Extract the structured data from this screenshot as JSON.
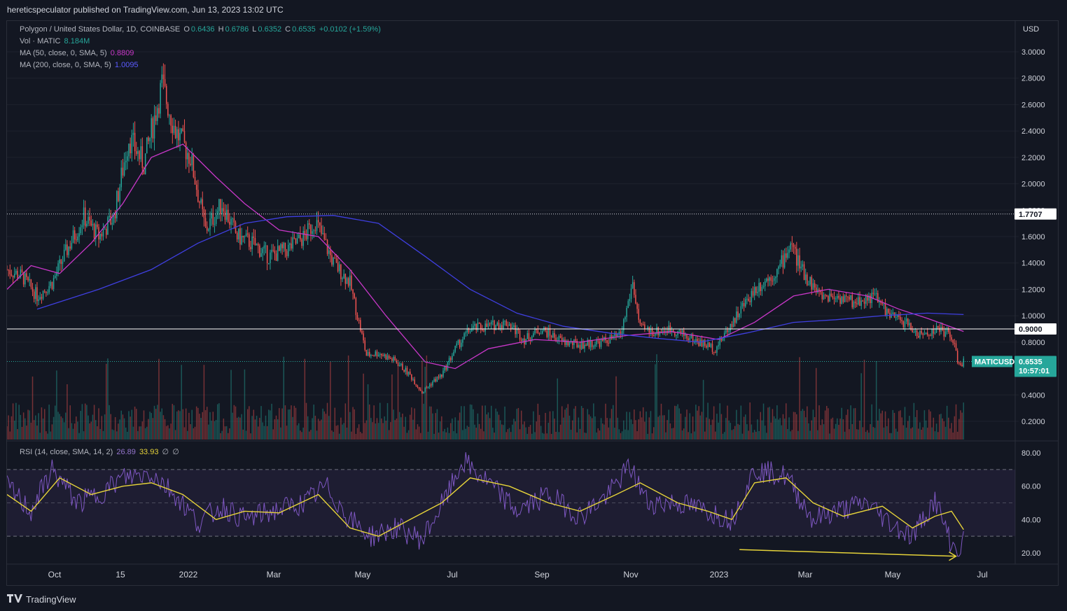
{
  "publisher_line": "hereticspeculator published on TradingView.com, Jun 13, 2023 13:02 UTC",
  "footer_brand": "TradingView",
  "legend": {
    "symbol": "Polygon / United States Dollar, 1D, COINBASE",
    "o_label": "O",
    "o": "0.6436",
    "h_label": "H",
    "h": "0.6786",
    "l_label": "L",
    "l": "0.6352",
    "c_label": "C",
    "c": "0.6535",
    "change": "+0.0102 (+1.59%)",
    "vol_label": "Vol · MATIC",
    "vol": "8.184M",
    "ma50_label": "MA (50, close, 0, SMA, 5)",
    "ma50": "0.8809",
    "ma200_label": "MA (200, close, 0, SMA, 5)",
    "ma200": "1.0095",
    "rsi_label": "RSI (14, close, SMA, 14, 2)",
    "rsi": "26.89",
    "rsi_ma": "33.93",
    "rsi_extra1": "∅",
    "rsi_extra2": "∅"
  },
  "price_axis": {
    "currency": "USD",
    "ticks": [
      "3.0000",
      "2.8000",
      "2.6000",
      "2.4000",
      "2.2000",
      "2.0000",
      "1.8000",
      "1.6000",
      "1.4000",
      "1.2000",
      "1.0000",
      "0.8000",
      "0.4000",
      "0.2000"
    ]
  },
  "rsi_axis": {
    "ticks": [
      "80.00",
      "60.00",
      "40.00",
      "20.00"
    ]
  },
  "time_axis": [
    "Oct",
    "15",
    "2022",
    "Mar",
    "May",
    "Jul",
    "Sep",
    "Nov",
    "2023",
    "Mar",
    "May",
    "Jul"
  ],
  "price_labels": {
    "resistance": "1.7707",
    "support": "0.9000",
    "ticker": "MATICUSD",
    "last": "0.6535",
    "countdown": "10:57:01"
  },
  "colors": {
    "up": "#26a69a",
    "down": "#ef5350",
    "ma50": "#c837c8",
    "ma200": "#3f3fe0",
    "rsi": "#7e57c2",
    "rsi_ma": "#e6d33a",
    "bg": "#131722"
  },
  "chart_data": {
    "type": "candlestick",
    "title": "Polygon / United States Dollar, 1D, COINBASE",
    "y_unit": "USD",
    "x_range": [
      "2021-09-15",
      "2023-07-15"
    ],
    "ylim": [
      0.0,
      3.0
    ],
    "horizontal_lines": [
      {
        "value": 1.7707,
        "style": "dotted"
      },
      {
        "value": 0.9,
        "style": "solid"
      },
      {
        "value": 0.6535,
        "style": "dotted"
      }
    ],
    "close_series": {
      "dates": [
        "2021-09-15",
        "2021-09-25",
        "2021-10-05",
        "2021-10-15",
        "2021-10-25",
        "2021-11-05",
        "2021-11-15",
        "2021-11-25",
        "2021-12-05",
        "2021-12-15",
        "2021-12-27",
        "2022-01-05",
        "2022-01-15",
        "2022-01-25",
        "2022-02-05",
        "2022-02-15",
        "2022-02-25",
        "2022-03-08",
        "2022-03-20",
        "2022-04-01",
        "2022-04-08",
        "2022-04-20",
        "2022-05-01",
        "2022-05-07",
        "2022-05-12",
        "2022-05-20",
        "2022-06-01",
        "2022-06-10",
        "2022-06-18",
        "2022-06-25",
        "2022-07-01",
        "2022-07-10",
        "2022-07-20",
        "2022-08-01",
        "2022-08-14",
        "2022-08-25",
        "2022-09-05",
        "2022-09-20",
        "2022-10-01",
        "2022-10-15",
        "2022-10-28",
        "2022-11-05",
        "2022-11-10",
        "2022-11-20",
        "2022-12-01",
        "2022-12-15",
        "2022-12-30",
        "2023-01-10",
        "2023-01-25",
        "2023-02-10",
        "2023-02-18",
        "2023-02-25",
        "2023-03-10",
        "2023-03-20",
        "2023-04-01",
        "2023-04-15",
        "2023-04-25",
        "2023-05-05",
        "2023-05-15",
        "2023-05-28",
        "2023-06-05",
        "2023-06-10",
        "2023-06-13"
      ],
      "values": [
        1.35,
        1.3,
        1.15,
        1.25,
        1.5,
        1.75,
        1.6,
        1.75,
        2.35,
        2.15,
        2.75,
        2.4,
        2.2,
        1.65,
        1.85,
        1.6,
        1.55,
        1.45,
        1.5,
        1.6,
        1.72,
        1.4,
        1.25,
        0.95,
        0.7,
        0.72,
        0.65,
        0.55,
        0.42,
        0.5,
        0.55,
        0.75,
        0.9,
        0.92,
        0.95,
        0.82,
        0.9,
        0.8,
        0.78,
        0.8,
        0.85,
        1.25,
        0.9,
        0.88,
        0.9,
        0.82,
        0.75,
        0.95,
        1.2,
        1.35,
        1.55,
        1.35,
        1.15,
        1.15,
        1.1,
        1.15,
        1.0,
        0.95,
        0.85,
        0.9,
        0.85,
        0.62,
        0.6535
      ]
    },
    "ma50": {
      "dates": [
        "2021-09-15",
        "2021-10-01",
        "2021-10-20",
        "2021-11-10",
        "2021-12-01",
        "2021-12-20",
        "2022-01-10",
        "2022-02-01",
        "2022-02-20",
        "2022-03-15",
        "2022-04-10",
        "2022-05-01",
        "2022-05-25",
        "2022-06-20",
        "2022-07-10",
        "2022-08-01",
        "2022-09-01",
        "2022-10-01",
        "2022-11-01",
        "2022-12-01",
        "2023-01-01",
        "2023-01-25",
        "2023-02-20",
        "2023-03-15",
        "2023-04-10",
        "2023-05-01",
        "2023-05-20",
        "2023-06-13"
      ],
      "values": [
        1.2,
        1.38,
        1.32,
        1.55,
        1.85,
        2.2,
        2.3,
        2.05,
        1.85,
        1.65,
        1.6,
        1.35,
        1.0,
        0.65,
        0.6,
        0.75,
        0.82,
        0.8,
        0.85,
        0.88,
        0.82,
        0.95,
        1.15,
        1.2,
        1.15,
        1.05,
        0.98,
        0.8809
      ]
    },
    "ma200": {
      "dates": [
        "2021-10-05",
        "2021-11-15",
        "2021-12-20",
        "2022-01-20",
        "2022-02-20",
        "2022-03-20",
        "2022-04-20",
        "2022-05-20",
        "2022-06-20",
        "2022-07-20",
        "2022-08-20",
        "2022-09-20",
        "2022-10-20",
        "2022-11-20",
        "2022-12-20",
        "2023-01-20",
        "2023-02-20",
        "2023-03-20",
        "2023-04-20",
        "2023-05-20",
        "2023-06-13"
      ],
      "values": [
        1.05,
        1.2,
        1.35,
        1.55,
        1.7,
        1.75,
        1.76,
        1.7,
        1.45,
        1.2,
        1.02,
        0.92,
        0.87,
        0.83,
        0.8,
        0.87,
        0.95,
        0.97,
        1.0,
        1.02,
        1.0095
      ]
    },
    "volume": {
      "label": "Vol · MATIC",
      "last": "8.184M"
    },
    "rsi": {
      "ylim": [
        10,
        85
      ],
      "bands": [
        70,
        50,
        30
      ],
      "dates": [
        "2021-09-15",
        "2021-10-01",
        "2021-10-15",
        "2021-11-01",
        "2021-11-15",
        "2021-12-01",
        "2021-12-20",
        "2022-01-05",
        "2022-01-20",
        "2022-02-05",
        "2022-02-20",
        "2022-03-10",
        "2022-04-01",
        "2022-04-15",
        "2022-05-01",
        "2022-05-15",
        "2022-06-01",
        "2022-06-18",
        "2022-07-05",
        "2022-07-15",
        "2022-08-01",
        "2022-08-20",
        "2022-09-10",
        "2022-10-01",
        "2022-10-20",
        "2022-11-03",
        "2022-11-15",
        "2022-12-05",
        "2022-12-25",
        "2023-01-10",
        "2023-01-25",
        "2023-02-15",
        "2023-03-05",
        "2023-03-20",
        "2023-04-10",
        "2023-04-25",
        "2023-05-10",
        "2023-05-25",
        "2023-06-05",
        "2023-06-10",
        "2023-06-13"
      ],
      "values": [
        60,
        45,
        70,
        50,
        55,
        65,
        68,
        55,
        38,
        48,
        40,
        45,
        50,
        60,
        40,
        30,
        35,
        28,
        55,
        75,
        62,
        45,
        55,
        42,
        55,
        72,
        50,
        50,
        45,
        40,
        70,
        66,
        40,
        45,
        50,
        38,
        30,
        52,
        25,
        20,
        26.89
      ]
    },
    "rsi_ma": {
      "dates": [
        "2021-09-15",
        "2021-10-01",
        "2021-10-20",
        "2021-11-10",
        "2021-12-01",
        "2021-12-20",
        "2022-01-10",
        "2022-02-01",
        "2022-02-20",
        "2022-03-15",
        "2022-04-10",
        "2022-05-01",
        "2022-05-20",
        "2022-06-10",
        "2022-07-01",
        "2022-07-20",
        "2022-08-15",
        "2022-09-10",
        "2022-10-01",
        "2022-10-25",
        "2022-11-10",
        "2022-12-05",
        "2022-12-25",
        "2023-01-10",
        "2023-01-25",
        "2023-02-15",
        "2023-03-05",
        "2023-03-25",
        "2023-04-20",
        "2023-05-10",
        "2023-05-25",
        "2023-06-05",
        "2023-06-13"
      ],
      "values": [
        55,
        45,
        65,
        55,
        60,
        62,
        55,
        40,
        45,
        44,
        55,
        35,
        30,
        40,
        50,
        65,
        60,
        50,
        45,
        55,
        62,
        50,
        45,
        40,
        62,
        65,
        50,
        42,
        48,
        35,
        42,
        45,
        33.93
      ]
    },
    "annotation": {
      "type": "arrow",
      "from": {
        "date": "2023-01-15",
        "rsi": 22
      },
      "to": {
        "date": "2023-06-08",
        "rsi": 18
      },
      "color": "#e6d33a"
    }
  }
}
